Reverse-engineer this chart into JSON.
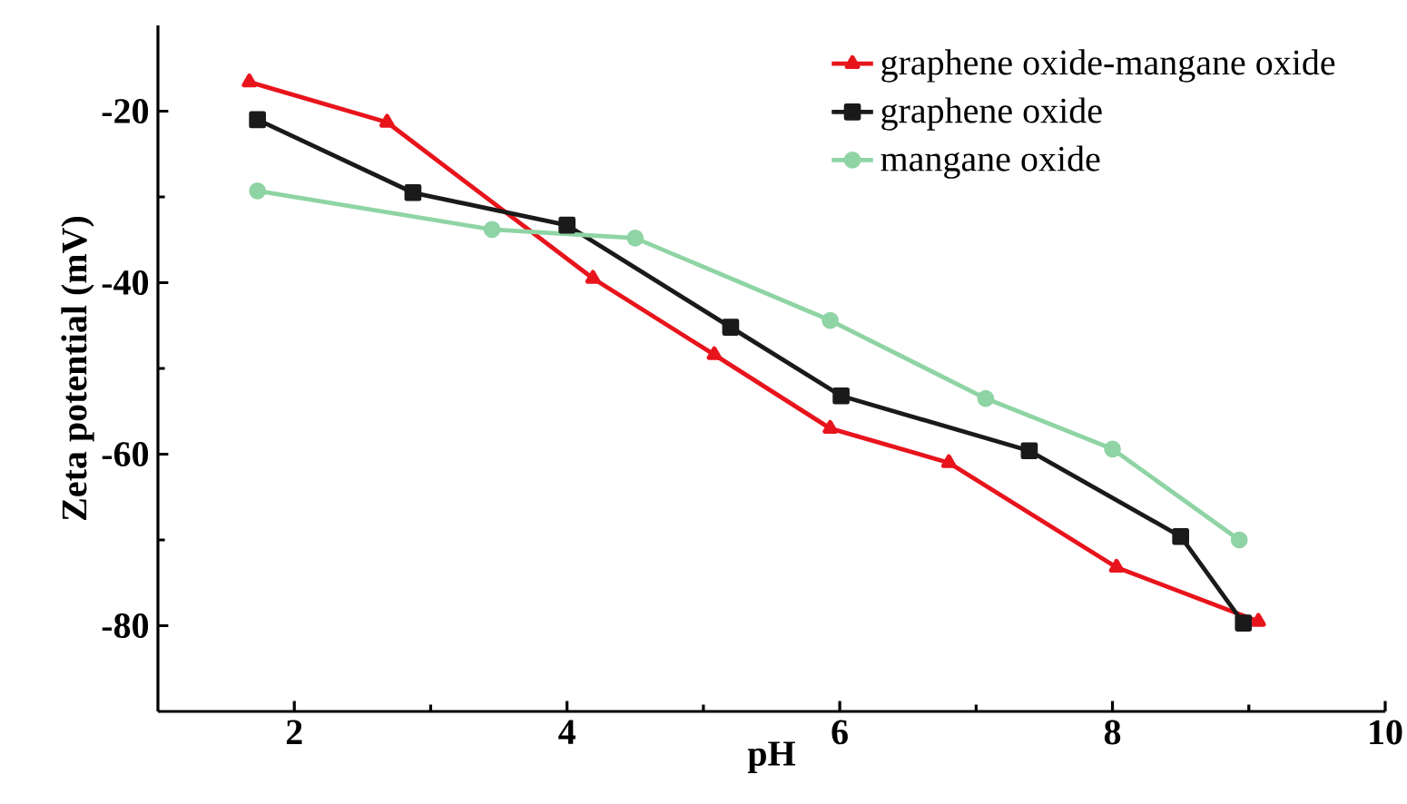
{
  "chart_data": {
    "type": "line",
    "xlabel": "pH",
    "ylabel": "Zeta potential (mV)",
    "xlim": [
      1,
      10
    ],
    "ylim": [
      -90,
      -10
    ],
    "xticks": [
      2,
      4,
      6,
      8,
      10
    ],
    "yticks": [
      -20,
      -40,
      -60,
      -80
    ],
    "grid": false,
    "legend": "top right",
    "line_style": "solid",
    "series": [
      {
        "name": "graphene oxide-mangane oxide",
        "color": "#e8141c",
        "marker": "triangle",
        "x": [
          1.67,
          2.68,
          4.19,
          5.08,
          5.93,
          6.8,
          8.03,
          9.07
        ],
        "values": [
          -16.6,
          -21.3,
          -39.5,
          -48.4,
          -57,
          -61,
          -73.2,
          -79.5
        ]
      },
      {
        "name": "graphene oxide",
        "color": "#1a1a1a",
        "marker": "square",
        "x": [
          1.73,
          2.87,
          4.0,
          5.2,
          6.01,
          7.39,
          8.5,
          8.96
        ],
        "values": [
          -21,
          -29.5,
          -33.3,
          -45.2,
          -53.2,
          -59.6,
          -69.6,
          -79.7
        ]
      },
      {
        "name": "mangane oxide",
        "color": "#8fd4a4",
        "marker": "circle",
        "x": [
          1.73,
          3.45,
          4.5,
          5.93,
          7.07,
          8.0,
          8.93
        ],
        "values": [
          -29.3,
          -33.8,
          -34.8,
          -44.4,
          -53.5,
          -59.4,
          -70
        ]
      }
    ]
  }
}
